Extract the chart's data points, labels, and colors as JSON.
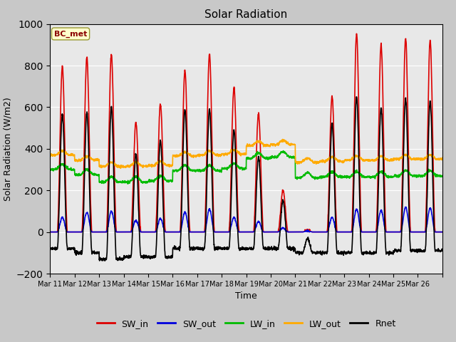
{
  "title": "Solar Radiation",
  "ylabel": "Solar Radiation (W/m2)",
  "xlabel": "Time",
  "ylim": [
    -200,
    1000
  ],
  "fig_facecolor": "#c8c8c8",
  "plot_bg_color": "#e8e8e8",
  "station_label": "BC_met",
  "x_tick_labels": [
    "Mar 11",
    "Mar 12",
    "Mar 13",
    "Mar 14",
    "Mar 15",
    "Mar 16",
    "Mar 17",
    "Mar 18",
    "Mar 19",
    "Mar 20",
    "Mar 21",
    "Mar 22",
    "Mar 23",
    "Mar 24",
    "Mar 25",
    "Mar 26"
  ],
  "series": {
    "SW_in": {
      "color": "#dd0000",
      "lw": 1.2
    },
    "SW_out": {
      "color": "#0000dd",
      "lw": 1.2
    },
    "LW_in": {
      "color": "#00bb00",
      "lw": 1.2
    },
    "LW_out": {
      "color": "#ffaa00",
      "lw": 1.2
    },
    "Rnet": {
      "color": "#000000",
      "lw": 1.2
    }
  },
  "SW_in_peaks": [
    795,
    840,
    855,
    525,
    615,
    775,
    855,
    695,
    570,
    200,
    10,
    650,
    950,
    900,
    930,
    920
  ],
  "SW_out_peaks": [
    70,
    95,
    100,
    55,
    65,
    95,
    110,
    70,
    50,
    20,
    5,
    70,
    110,
    105,
    120,
    115
  ],
  "LW_in_base": [
    300,
    275,
    240,
    240,
    245,
    295,
    295,
    305,
    355,
    360,
    260,
    265,
    265,
    265,
    270,
    270
  ],
  "LW_out_base": [
    370,
    345,
    315,
    315,
    320,
    365,
    370,
    375,
    415,
    420,
    335,
    340,
    345,
    345,
    350,
    350
  ],
  "Rnet_night": [
    -80,
    -100,
    -130,
    -120,
    -120,
    -80,
    -80,
    -80,
    -80,
    -80,
    -100,
    -100,
    -100,
    -100,
    -90,
    -90
  ],
  "Rnet_peaks": [
    565,
    575,
    600,
    375,
    440,
    590,
    590,
    490,
    360,
    150,
    -30,
    520,
    650,
    600,
    640,
    630
  ],
  "n_days": 16,
  "pts_per_day": 144
}
